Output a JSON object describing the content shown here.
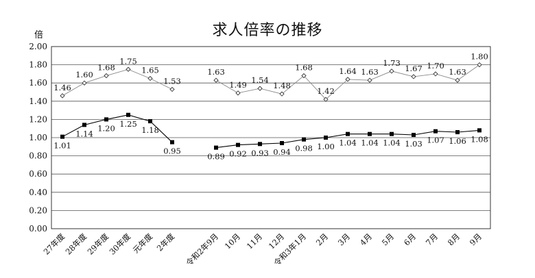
{
  "chart_data": {
    "type": "line",
    "title": "求人倍率の推移",
    "ylabel": "倍",
    "xlabel": "",
    "ylim": [
      0,
      2.0
    ],
    "yticks": [
      "0.00",
      "0.20",
      "0.40",
      "0.60",
      "0.80",
      "1.00",
      "1.20",
      "1.40",
      "1.60",
      "1.80",
      "2.00"
    ],
    "grid": true,
    "legend": "none",
    "categories": [
      "27年度",
      "28年度",
      "29年度",
      "30年度",
      "元年度",
      "2年度",
      "",
      "令和2年9月",
      "10月",
      "11月",
      "12月",
      "令和3年1月",
      "2月",
      "3月",
      "4月",
      "5月",
      "6月",
      "7月",
      "8月",
      "9月"
    ],
    "series": [
      {
        "marker": "open-diamond",
        "color": "#888888",
        "values": [
          1.46,
          1.6,
          1.68,
          1.75,
          1.65,
          1.53,
          null,
          1.63,
          1.49,
          1.54,
          1.48,
          1.68,
          1.42,
          1.64,
          1.63,
          1.73,
          1.67,
          1.7,
          1.63,
          1.8
        ],
        "labels": [
          "1.46",
          "1.60",
          "1.68",
          "1.75",
          "1.65",
          "1.53",
          "",
          "1.63",
          "1.49",
          "1.54",
          "1.48",
          "1.68",
          "1.42",
          "1.64",
          "1.63",
          "1.73",
          "1.67",
          "1.70",
          "1.63",
          "1.80"
        ]
      },
      {
        "marker": "filled-square",
        "color": "#000000",
        "values": [
          1.01,
          1.14,
          1.2,
          1.25,
          1.18,
          0.95,
          null,
          0.89,
          0.92,
          0.93,
          0.94,
          0.98,
          1.0,
          1.04,
          1.04,
          1.04,
          1.03,
          1.07,
          1.06,
          1.08
        ],
        "labels": [
          "1.01",
          "1.14",
          "1.20",
          "1.25",
          "1.18",
          "0.95",
          "",
          "0.89",
          "0.92",
          "0.93",
          "0.94",
          "0.98",
          "1.00",
          "1.04",
          "1.04",
          "1.04",
          "1.03",
          "1.07",
          "1.06",
          "1.08"
        ]
      }
    ]
  }
}
